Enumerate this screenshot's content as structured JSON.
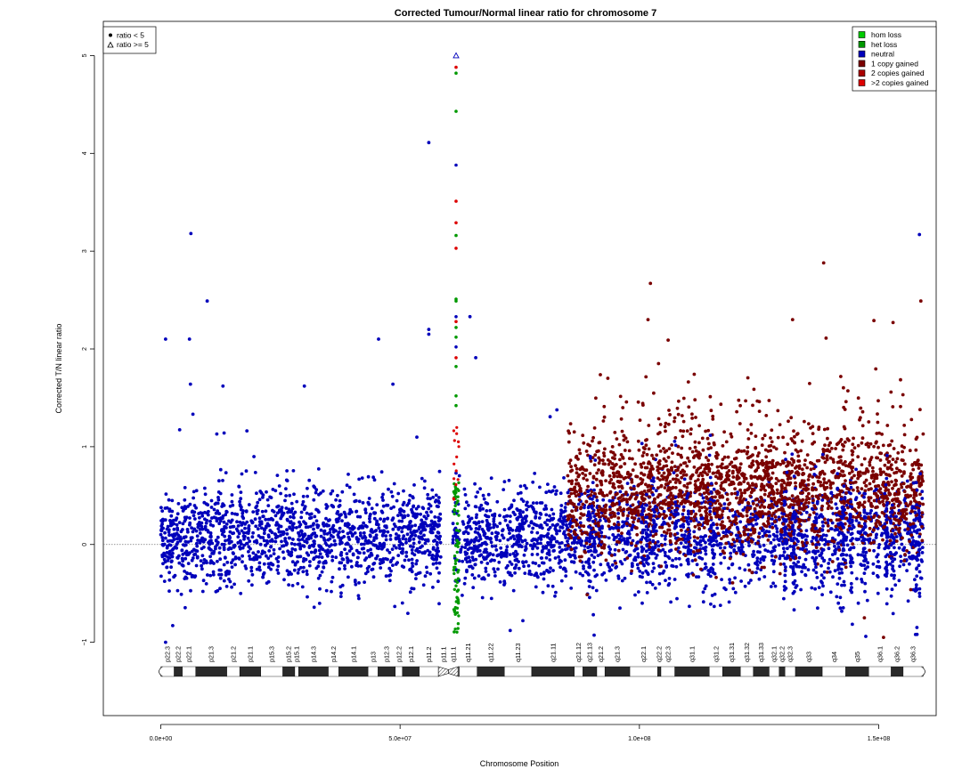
{
  "chart_data": {
    "type": "scatter",
    "title": "Corrected Tumour/Normal linear ratio for chromosome  7",
    "xlabel": "Chromosome Position",
    "ylabel": "Corrected T/N linear ratio",
    "xlim": [
      -12000000,
      162000000
    ],
    "ylim": [
      -1.75,
      5.35
    ],
    "x_ticks": [
      0,
      50000000,
      100000000,
      150000000
    ],
    "x_tick_labels": [
      "0.0e+00",
      "5.0e+07",
      "1.0e+08",
      "1.5e+08"
    ],
    "y_ticks": [
      -1,
      0,
      1,
      2,
      3,
      4,
      5
    ],
    "y_tick_labels": [
      "−1",
      "0",
      "1",
      "2",
      "3",
      "4",
      "5"
    ],
    "reference_line_y": 0,
    "shape_legend": {
      "placement": "top-left",
      "entries": [
        {
          "symbol": "filled-circle",
          "label": "ratio < 5"
        },
        {
          "symbol": "open-triangle",
          "label": "ratio >= 5"
        }
      ]
    },
    "state_legend": {
      "placement": "top-right",
      "entries": [
        {
          "label": "hom loss",
          "color": "#00CC00"
        },
        {
          "label": "het loss",
          "color": "#009900"
        },
        {
          "label": "neutral",
          "color": "#0000BB"
        },
        {
          "label": "1 copy gained",
          "color": "#7A0000"
        },
        {
          "label": "2 copies gained",
          "color": "#AA0000"
        },
        {
          "label": ">2 copies gained",
          "color": "#DD0000"
        }
      ]
    },
    "point_density": {
      "neutral_segments_bp": [
        [
          0,
          58500000
        ],
        [
          61000000,
          85000000
        ]
      ],
      "gained_segment_bp": [
        85000000,
        159300000
      ],
      "centromere_loss_bp": [
        61200000,
        62300000
      ]
    },
    "outliers": [
      {
        "x": 1000000,
        "y": 2.1,
        "state": "neutral"
      },
      {
        "x": 6300000,
        "y": 3.18,
        "state": "neutral"
      },
      {
        "x": 6000000,
        "y": 2.1,
        "state": "neutral"
      },
      {
        "x": 9700000,
        "y": 2.49,
        "state": "neutral"
      },
      {
        "x": 6200000,
        "y": 1.64,
        "state": "neutral"
      },
      {
        "x": 13000000,
        "y": 1.62,
        "state": "neutral"
      },
      {
        "x": 30000000,
        "y": 1.62,
        "state": "neutral"
      },
      {
        "x": 45500000,
        "y": 2.1,
        "state": "neutral"
      },
      {
        "x": 48500000,
        "y": 1.64,
        "state": "neutral"
      },
      {
        "x": 56000000,
        "y": 4.11,
        "state": "neutral"
      },
      {
        "x": 56000000,
        "y": 2.2,
        "state": "neutral"
      },
      {
        "x": 56000000,
        "y": 2.15,
        "state": "neutral"
      },
      {
        "x": 64600000,
        "y": 2.33,
        "state": "neutral"
      },
      {
        "x": 65800000,
        "y": 1.91,
        "state": "neutral"
      },
      {
        "x": 73000000,
        "y": -0.88,
        "state": "neutral"
      },
      {
        "x": 1000000,
        "y": -1.0,
        "state": "neutral"
      },
      {
        "x": 2500000,
        "y": -0.83,
        "state": "neutral"
      },
      {
        "x": 102300000,
        "y": 2.67,
        "state": "gained"
      },
      {
        "x": 101800000,
        "y": 2.3,
        "state": "gained"
      },
      {
        "x": 104000000,
        "y": 1.85,
        "state": "gained"
      },
      {
        "x": 106000000,
        "y": 2.09,
        "state": "gained"
      },
      {
        "x": 132000000,
        "y": 2.3,
        "state": "gained"
      },
      {
        "x": 138500000,
        "y": 2.88,
        "state": "gained"
      },
      {
        "x": 139000000,
        "y": 2.11,
        "state": "gained"
      },
      {
        "x": 149000000,
        "y": 2.29,
        "state": "gained"
      },
      {
        "x": 153000000,
        "y": 2.27,
        "state": "gained"
      },
      {
        "x": 158800000,
        "y": 2.49,
        "state": "gained"
      },
      {
        "x": 158500000,
        "y": 3.17,
        "state": "neutral"
      },
      {
        "x": 158000000,
        "y": -0.92,
        "state": "neutral"
      },
      {
        "x": 151000000,
        "y": -0.95,
        "state": "gained"
      },
      {
        "x": 147000000,
        "y": -0.75,
        "state": "gained"
      }
    ],
    "centromere_column": [
      {
        "x": 61700000,
        "y": 5.0,
        "state": "neutral",
        "symbol": "open-triangle"
      },
      {
        "x": 61700000,
        "y": 4.88,
        "state": "amp"
      },
      {
        "x": 61700000,
        "y": 4.82,
        "state": "hetloss"
      },
      {
        "x": 61700000,
        "y": 4.43,
        "state": "hetloss"
      },
      {
        "x": 61700000,
        "y": 3.88,
        "state": "neutral"
      },
      {
        "x": 61700000,
        "y": 3.51,
        "state": "amp"
      },
      {
        "x": 61700000,
        "y": 3.29,
        "state": "amp"
      },
      {
        "x": 61700000,
        "y": 3.16,
        "state": "hetloss"
      },
      {
        "x": 61700000,
        "y": 3.03,
        "state": "amp"
      },
      {
        "x": 61700000,
        "y": 2.51,
        "state": "hetloss"
      },
      {
        "x": 61700000,
        "y": 2.49,
        "state": "hetloss"
      },
      {
        "x": 61700000,
        "y": 2.33,
        "state": "neutral"
      },
      {
        "x": 61700000,
        "y": 2.28,
        "state": "amp"
      },
      {
        "x": 61700000,
        "y": 2.22,
        "state": "hetloss"
      },
      {
        "x": 61700000,
        "y": 2.12,
        "state": "hetloss"
      },
      {
        "x": 61700000,
        "y": 2.02,
        "state": "neutral"
      },
      {
        "x": 61700000,
        "y": 1.91,
        "state": "amp"
      },
      {
        "x": 61700000,
        "y": 1.82,
        "state": "hetloss"
      },
      {
        "x": 61700000,
        "y": 1.52,
        "state": "hetloss"
      },
      {
        "x": 61700000,
        "y": 1.42,
        "state": "hetloss"
      }
    ],
    "ideogram": {
      "bands": [
        {
          "name": "p22.3",
          "start": 0,
          "end": 2800000,
          "stain": "gneg"
        },
        {
          "name": "p22.2",
          "start": 2800000,
          "end": 4500000,
          "stain": "gpos"
        },
        {
          "name": "p22.1",
          "start": 4500000,
          "end": 7300000,
          "stain": "gneg"
        },
        {
          "name": "p21.3",
          "start": 7300000,
          "end": 13800000,
          "stain": "gpos"
        },
        {
          "name": "p21.2",
          "start": 13800000,
          "end": 16500000,
          "stain": "gneg"
        },
        {
          "name": "p21.1",
          "start": 16500000,
          "end": 20900000,
          "stain": "gpos"
        },
        {
          "name": "p15.3",
          "start": 20900000,
          "end": 25500000,
          "stain": "gneg"
        },
        {
          "name": "p15.2",
          "start": 25500000,
          "end": 28000000,
          "stain": "gpos"
        },
        {
          "name": "p15.1",
          "start": 28000000,
          "end": 28800000,
          "stain": "gneg"
        },
        {
          "name": "p14.3",
          "start": 28800000,
          "end": 35000000,
          "stain": "gpos"
        },
        {
          "name": "p14.2",
          "start": 35000000,
          "end": 37200000,
          "stain": "gneg"
        },
        {
          "name": "p14.1",
          "start": 37200000,
          "end": 43300000,
          "stain": "gpos"
        },
        {
          "name": "p13",
          "start": 43300000,
          "end": 45400000,
          "stain": "gneg"
        },
        {
          "name": "p12.3",
          "start": 45400000,
          "end": 49000000,
          "stain": "gpos"
        },
        {
          "name": "p12.2",
          "start": 49000000,
          "end": 50500000,
          "stain": "gneg"
        },
        {
          "name": "p12.1",
          "start": 50500000,
          "end": 54000000,
          "stain": "gpos"
        },
        {
          "name": "p11.2",
          "start": 54000000,
          "end": 58000000,
          "stain": "gneg"
        },
        {
          "name": "p11.1",
          "start": 58000000,
          "end": 60100000,
          "stain": "acen"
        },
        {
          "name": "q11.1",
          "start": 60100000,
          "end": 62100000,
          "stain": "acen"
        },
        {
          "name": "",
          "start": 62100000,
          "end": 62400000,
          "stain": "gvar"
        },
        {
          "name": "q11.21",
          "start": 62400000,
          "end": 66100000,
          "stain": "gneg"
        },
        {
          "name": "q11.22",
          "start": 66100000,
          "end": 71800000,
          "stain": "gpos"
        },
        {
          "name": "q11.23",
          "start": 71800000,
          "end": 77500000,
          "stain": "gneg"
        },
        {
          "name": "q21.11",
          "start": 77500000,
          "end": 86400000,
          "stain": "gpos"
        },
        {
          "name": "q21.12",
          "start": 86400000,
          "end": 88200000,
          "stain": "gneg"
        },
        {
          "name": "q21.13",
          "start": 88200000,
          "end": 91100000,
          "stain": "gpos"
        },
        {
          "name": "q21.2",
          "start": 91100000,
          "end": 92800000,
          "stain": "gneg"
        },
        {
          "name": "q21.3",
          "start": 92800000,
          "end": 98000000,
          "stain": "gpos"
        },
        {
          "name": "q22.1",
          "start": 98000000,
          "end": 103800000,
          "stain": "gneg"
        },
        {
          "name": "q22.2",
          "start": 103800000,
          "end": 104500000,
          "stain": "gpos"
        },
        {
          "name": "q22.3",
          "start": 104500000,
          "end": 107400000,
          "stain": "gneg"
        },
        {
          "name": "q31.1",
          "start": 107400000,
          "end": 114600000,
          "stain": "gpos"
        },
        {
          "name": "q31.2",
          "start": 114600000,
          "end": 117400000,
          "stain": "gneg"
        },
        {
          "name": "q31.31",
          "start": 117400000,
          "end": 121100000,
          "stain": "gpos"
        },
        {
          "name": "q31.32",
          "start": 121100000,
          "end": 123800000,
          "stain": "gneg"
        },
        {
          "name": "q31.33",
          "start": 123800000,
          "end": 127100000,
          "stain": "gpos"
        },
        {
          "name": "q32.1",
          "start": 127100000,
          "end": 129200000,
          "stain": "gneg"
        },
        {
          "name": "q32.2",
          "start": 129200000,
          "end": 130400000,
          "stain": "gpos"
        },
        {
          "name": "q32.3",
          "start": 130400000,
          "end": 132600000,
          "stain": "gneg"
        },
        {
          "name": "q33",
          "start": 132600000,
          "end": 138200000,
          "stain": "gpos"
        },
        {
          "name": "q34",
          "start": 138200000,
          "end": 143100000,
          "stain": "gneg"
        },
        {
          "name": "q35",
          "start": 143100000,
          "end": 147900000,
          "stain": "gpos"
        },
        {
          "name": "q36.1",
          "start": 147900000,
          "end": 152600000,
          "stain": "gneg"
        },
        {
          "name": "q36.2",
          "start": 152600000,
          "end": 155100000,
          "stain": "gpos"
        },
        {
          "name": "q36.3",
          "start": 155100000,
          "end": 159300000,
          "stain": "gneg"
        }
      ]
    }
  }
}
